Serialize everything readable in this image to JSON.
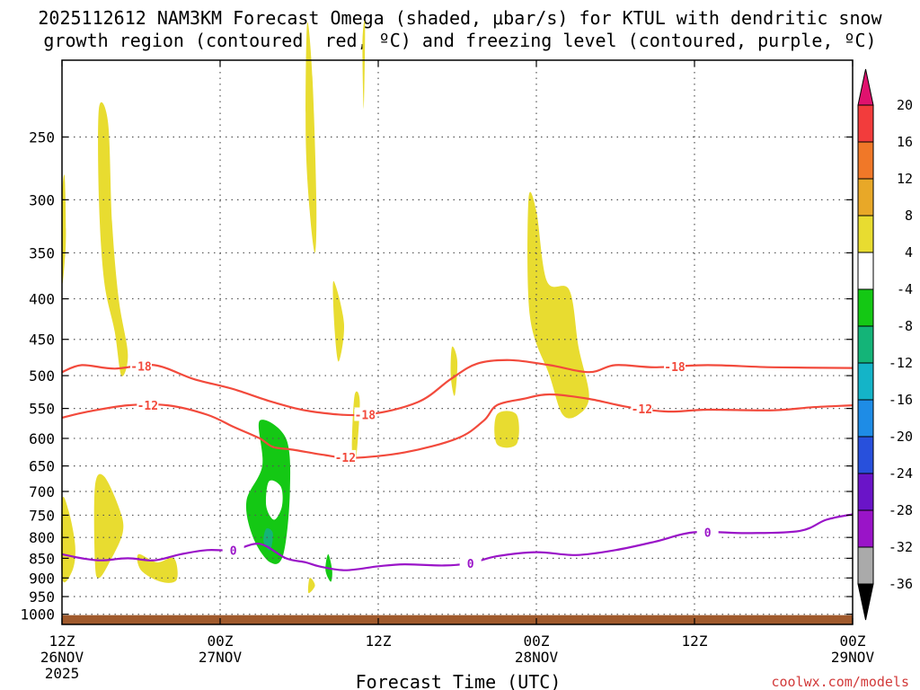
{
  "chart_data": {
    "type": "heatmap",
    "title_line1": "2025112612 NAM3KM Forecast Omega (shaded, μbar/s) for KTUL with dendritic snow",
    "title_line2": "growth region (contoured, red, ºC) and freezing level (contoured, purple, ºC)",
    "xlabel": "Forecast Time (UTC)",
    "x_range_hours": [
      0,
      60
    ],
    "x_ticks": [
      {
        "hour": 0,
        "line1": "12Z",
        "line2": "26NOV",
        "line3": "2025"
      },
      {
        "hour": 12,
        "line1": "00Z",
        "line2": "27NOV",
        "line3": ""
      },
      {
        "hour": 24,
        "line1": "12Z",
        "line2": "",
        "line3": ""
      },
      {
        "hour": 36,
        "line1": "00Z",
        "line2": "28NOV",
        "line3": ""
      },
      {
        "hour": 48,
        "line1": "12Z",
        "line2": "",
        "line3": ""
      },
      {
        "hour": 60,
        "line1": "00Z",
        "line2": "29NOV",
        "line3": ""
      }
    ],
    "y_ticks_hpa": [
      250,
      300,
      350,
      400,
      450,
      500,
      550,
      600,
      650,
      700,
      750,
      800,
      850,
      900,
      950,
      1000
    ],
    "y_range_hpa": [
      200,
      1030
    ],
    "colorbar": {
      "labels": [
        "20",
        "16",
        "12",
        "8",
        "4",
        "-4",
        "-8",
        "-12",
        "-16",
        "-20",
        "-24",
        "-28",
        "-32",
        "-36"
      ],
      "colors": [
        "#e0126e",
        "#f23c3c",
        "#f07828",
        "#e8a828",
        "#e8dc30",
        "#ffffff",
        "#14c814",
        "#14b478",
        "#14b4c8",
        "#1e8ce6",
        "#2850dc",
        "#6a14c8",
        "#9a14c8",
        "#aaaaaa",
        "#000000"
      ]
    },
    "ground_color": "#a05a2c",
    "omega_regions": [
      {
        "color": "#e8dc30",
        "points": [
          [
            0.0,
            300
          ],
          [
            0.2,
            280
          ],
          [
            0.3,
            330
          ],
          [
            0.2,
            360
          ],
          [
            0.0,
            380
          ]
        ]
      },
      {
        "color": "#e8dc30",
        "points": [
          [
            2.8,
            230
          ],
          [
            3.5,
            240
          ],
          [
            3.8,
            320
          ],
          [
            4.3,
            400
          ],
          [
            5.0,
            470
          ],
          [
            4.5,
            500
          ],
          [
            4.0,
            440
          ],
          [
            3.2,
            380
          ],
          [
            2.8,
            300
          ]
        ]
      },
      {
        "color": "#e8dc30",
        "points": [
          [
            0.0,
            720
          ],
          [
            0.5,
            740
          ],
          [
            1.0,
            820
          ],
          [
            0.8,
            880
          ],
          [
            0.0,
            900
          ]
        ]
      },
      {
        "color": "#e8dc30",
        "points": [
          [
            2.5,
            690
          ],
          [
            3.2,
            670
          ],
          [
            4.4,
            740
          ],
          [
            4.6,
            790
          ],
          [
            3.6,
            860
          ],
          [
            2.8,
            900
          ],
          [
            2.5,
            860
          ]
        ]
      },
      {
        "color": "#e8dc30",
        "points": [
          [
            5.8,
            840
          ],
          [
            7.2,
            860
          ],
          [
            8.5,
            850
          ],
          [
            8.7,
            905
          ],
          [
            7.5,
            910
          ],
          [
            6.0,
            880
          ]
        ]
      },
      {
        "color": "#e8dc30",
        "points": [
          [
            18.6,
            180
          ],
          [
            19.0,
            210
          ],
          [
            19.3,
            300
          ],
          [
            19.2,
            350
          ],
          [
            18.8,
            310
          ],
          [
            18.5,
            250
          ]
        ]
      },
      {
        "color": "#e8dc30",
        "points": [
          [
            20.6,
            380
          ],
          [
            21.4,
            430
          ],
          [
            21.0,
            480
          ],
          [
            20.7,
            440
          ]
        ]
      },
      {
        "color": "#e8dc30",
        "points": [
          [
            22.8,
            190
          ],
          [
            23.0,
            180
          ],
          [
            22.9,
            230
          ]
        ]
      },
      {
        "color": "#e8dc30",
        "points": [
          [
            22.2,
            530
          ],
          [
            22.6,
            540
          ],
          [
            22.3,
            640
          ],
          [
            22.0,
            620
          ]
        ]
      },
      {
        "color": "#e8dc30",
        "points": [
          [
            29.6,
            460
          ],
          [
            30.0,
            480
          ],
          [
            29.8,
            530
          ],
          [
            29.5,
            500
          ]
        ]
      },
      {
        "color": "#e8dc30",
        "points": [
          [
            35.4,
            300
          ],
          [
            36.0,
            310
          ],
          [
            36.8,
            380
          ],
          [
            38.5,
            390
          ],
          [
            39.2,
            460
          ],
          [
            40.0,
            530
          ],
          [
            39.2,
            560
          ],
          [
            38.0,
            560
          ],
          [
            37.0,
            500
          ],
          [
            35.5,
            420
          ]
        ]
      },
      {
        "color": "#e8dc30",
        "points": [
          [
            33.0,
            560
          ],
          [
            34.5,
            560
          ],
          [
            34.5,
            610
          ],
          [
            33.0,
            610
          ]
        ]
      },
      {
        "color": "#e8dc30",
        "points": [
          [
            18.8,
            900
          ],
          [
            19.2,
            920
          ],
          [
            18.7,
            940
          ]
        ]
      },
      {
        "color": "#14c814",
        "points": [
          [
            15.0,
            570
          ],
          [
            17.0,
            600
          ],
          [
            17.3,
            700
          ],
          [
            16.8,
            840
          ],
          [
            15.8,
            860
          ],
          [
            14.5,
            800
          ],
          [
            14.0,
            720
          ],
          [
            15.2,
            650
          ]
        ]
      },
      {
        "color": "#14c814",
        "points": [
          [
            20.2,
            840
          ],
          [
            20.5,
            880
          ],
          [
            20.4,
            910
          ],
          [
            20.0,
            880
          ]
        ]
      },
      {
        "color": "#14b478",
        "points": [
          [
            15.5,
            780
          ],
          [
            16.0,
            790
          ],
          [
            15.8,
            830
          ],
          [
            15.3,
            810
          ]
        ]
      },
      {
        "color": "#ffffff",
        "points": [
          [
            15.7,
            680
          ],
          [
            16.6,
            690
          ],
          [
            16.7,
            730
          ],
          [
            16.1,
            760
          ],
          [
            15.5,
            730
          ]
        ]
      }
    ],
    "contours": [
      {
        "name": "dgz-upper",
        "label": "-18",
        "color": "#f24a3c",
        "points": [
          [
            0,
            495
          ],
          [
            1.5,
            485
          ],
          [
            4,
            490
          ],
          [
            7,
            485
          ],
          [
            10,
            505
          ],
          [
            13,
            520
          ],
          [
            16,
            540
          ],
          [
            19,
            555
          ],
          [
            23,
            560
          ],
          [
            27,
            540
          ],
          [
            29.5,
            505
          ],
          [
            31.5,
            483
          ],
          [
            34,
            478
          ],
          [
            37,
            485
          ],
          [
            40,
            495
          ],
          [
            42,
            485
          ],
          [
            45,
            488
          ],
          [
            49,
            485
          ],
          [
            54,
            488
          ],
          [
            60,
            489
          ]
        ],
        "label_positions": [
          6,
          23,
          46.5
        ]
      },
      {
        "name": "dgz-lower",
        "label": "-12",
        "color": "#f24a3c",
        "points": [
          [
            0,
            565
          ],
          [
            2,
            555
          ],
          [
            5,
            545
          ],
          [
            8,
            545
          ],
          [
            11,
            560
          ],
          [
            13,
            580
          ],
          [
            15,
            600
          ],
          [
            16,
            615
          ],
          [
            17.5,
            620
          ],
          [
            20,
            630
          ],
          [
            22,
            635
          ],
          [
            26,
            625
          ],
          [
            30,
            600
          ],
          [
            32,
            570
          ],
          [
            33,
            545
          ],
          [
            35,
            535
          ],
          [
            37,
            528
          ],
          [
            40,
            535
          ],
          [
            43,
            548
          ],
          [
            46,
            555
          ],
          [
            49,
            552
          ],
          [
            54,
            553
          ],
          [
            57,
            548
          ],
          [
            60,
            545
          ]
        ],
        "label_positions": [
          6.5,
          21.5,
          44
        ]
      },
      {
        "name": "freezing-level",
        "label": "0",
        "color": "#9a14c8",
        "points": [
          [
            0,
            840
          ],
          [
            1.5,
            850
          ],
          [
            3,
            855
          ],
          [
            5,
            850
          ],
          [
            7,
            855
          ],
          [
            9,
            840
          ],
          [
            11,
            830
          ],
          [
            13,
            830
          ],
          [
            15,
            815
          ],
          [
            17,
            850
          ],
          [
            18.5,
            860
          ],
          [
            19.5,
            870
          ],
          [
            21.5,
            880
          ],
          [
            24,
            870
          ],
          [
            26,
            865
          ],
          [
            29,
            868
          ],
          [
            31,
            862
          ],
          [
            33,
            845
          ],
          [
            36,
            835
          ],
          [
            39,
            842
          ],
          [
            42,
            830
          ],
          [
            45,
            810
          ],
          [
            48,
            788
          ],
          [
            52,
            790
          ],
          [
            56,
            785
          ],
          [
            58,
            760
          ],
          [
            60,
            748
          ]
        ],
        "label_positions": [
          13,
          31,
          49
        ]
      }
    ],
    "credit": "coolwx.com/models"
  }
}
